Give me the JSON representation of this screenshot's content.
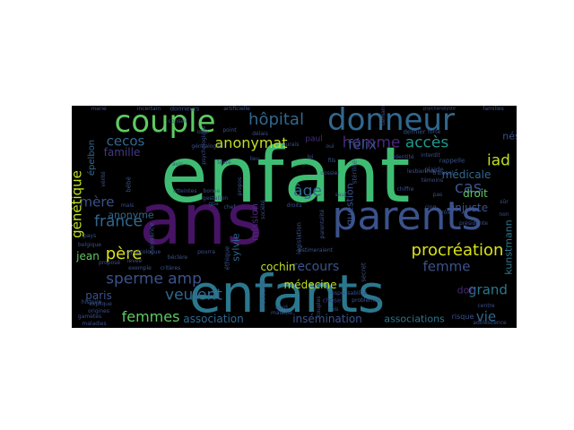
{
  "wordcloud": {
    "background": "#000000",
    "words": [
      {
        "text": "enfant",
        "color": "#3fbc73",
        "vertical": false
      },
      {
        "text": "ans",
        "color": "#471365",
        "vertical": false
      },
      {
        "text": "enfants",
        "color": "#2a788e",
        "vertical": false
      },
      {
        "text": "parents",
        "color": "#3b528b",
        "vertical": false
      },
      {
        "text": "couple",
        "color": "#5ec962",
        "vertical": false
      },
      {
        "text": "donneur",
        "color": "#31688e",
        "vertical": false
      },
      {
        "text": "procréation",
        "color": "#d8e219",
        "vertical": false
      },
      {
        "text": "sperme",
        "color": "#3b528b",
        "vertical": false
      },
      {
        "text": "amp",
        "color": "#3b528b",
        "vertical": false
      },
      {
        "text": "veulent",
        "color": "#31688e",
        "vertical": false
      },
      {
        "text": "femmes",
        "color": "#5ec962",
        "vertical": false
      },
      {
        "text": "hôpital",
        "color": "#31688e",
        "vertical": false
      },
      {
        "text": "anonymat",
        "color": "#c2df23",
        "vertical": false
      },
      {
        "text": "homme",
        "color": "#482878",
        "vertical": false
      },
      {
        "text": "accès",
        "color": "#1f988b",
        "vertical": false
      },
      {
        "text": "félix",
        "color": "#3b528b",
        "vertical": false
      },
      {
        "text": "cecos",
        "color": "#31688e",
        "vertical": false
      },
      {
        "text": "famille",
        "color": "#443983",
        "vertical": false
      },
      {
        "text": "père",
        "color": "#d8e219",
        "vertical": false
      },
      {
        "text": "france",
        "color": "#31688e",
        "vertical": false
      },
      {
        "text": "mère",
        "color": "#3b528b",
        "vertical": false
      },
      {
        "text": "génétique",
        "color": "#c2df23",
        "vertical": true
      },
      {
        "text": "femme",
        "color": "#3b528b",
        "vertical": false
      },
      {
        "text": "grand",
        "color": "#2a788e",
        "vertical": false
      },
      {
        "text": "vie",
        "color": "#31688e",
        "vertical": false
      },
      {
        "text": "cas",
        "color": "#3b528b",
        "vertical": false
      },
      {
        "text": "iad",
        "color": "#c2df23",
        "vertical": false
      },
      {
        "text": "âge",
        "color": "#31688e",
        "vertical": false
      },
      {
        "text": "médicale",
        "color": "#31688e",
        "vertical": false
      },
      {
        "text": "droit",
        "color": "#5ec962",
        "vertical": false
      },
      {
        "text": "injuste",
        "color": "#3b528b",
        "vertical": false
      },
      {
        "text": "kunstmann",
        "color": "#2a788e",
        "vertical": true
      },
      {
        "text": "nés",
        "color": "#3b528b",
        "vertical": false
      },
      {
        "text": "recours",
        "color": "#3b528b",
        "vertical": false
      },
      {
        "text": "don",
        "color": "#482878",
        "vertical": false
      },
      {
        "text": "cochin",
        "color": "#c2df23",
        "vertical": false
      },
      {
        "text": "médecine",
        "color": "#c2df23",
        "vertical": false
      },
      {
        "text": "jean",
        "color": "#5ec962",
        "vertical": false
      },
      {
        "text": "paris",
        "color": "#3b528b",
        "vertical": false
      },
      {
        "text": "anonyme",
        "color": "#31688e",
        "vertical": false
      },
      {
        "text": "association",
        "color": "#31688e",
        "vertical": false
      },
      {
        "text": "insémination",
        "color": "#3b528b",
        "vertical": false
      },
      {
        "text": "associations",
        "color": "#2a788e",
        "vertical": false
      },
      {
        "text": "mission",
        "color": "#482878",
        "vertical": true
      },
      {
        "text": "question",
        "color": "#3b528b",
        "vertical": true
      },
      {
        "text": "sylvie",
        "color": "#31688e",
        "vertical": true
      },
      {
        "text": "épelbon",
        "color": "#31688e",
        "vertical": true
      },
      {
        "text": "paul",
        "color": "#472d7b",
        "vertical": false
      },
      {
        "text": "risque",
        "color": "#3b528b",
        "vertical": false
      },
      {
        "text": "chose",
        "color": "#443983",
        "vertical": false
      },
      {
        "text": "plaide",
        "color": "#3b528b",
        "vertical": false
      },
      {
        "text": "dernier",
        "color": "#3b528b",
        "vertical": false
      },
      {
        "text": "conseil",
        "color": "#3b528b",
        "vertical": false
      },
      {
        "text": "donneurs",
        "color": "#3b528b",
        "vertical": false
      },
      {
        "text": "incertain",
        "color": "#3b528b",
        "vertical": false
      },
      {
        "text": "artificielle",
        "color": "#3b528b",
        "vertical": false
      },
      {
        "text": "marié",
        "color": "#3b528b",
        "vertical": false
      },
      {
        "text": "psychanalyste",
        "color": "#3b528b",
        "vertical": false
      },
      {
        "text": "familles",
        "color": "#3b528b",
        "vertical": false
      },
      {
        "text": "adolescence",
        "color": "#3b528b",
        "vertical": false
      },
      {
        "text": "centre",
        "color": "#3b528b",
        "vertical": false
      },
      {
        "text": "nord",
        "color": "#3b528b",
        "vertical": false
      },
      {
        "text": "fois",
        "color": "#3b528b",
        "vertical": false
      },
      {
        "text": "maladie",
        "color": "#3b528b",
        "vertical": false
      },
      {
        "text": "maladies",
        "color": "#3b528b",
        "vertical": false
      },
      {
        "text": "histoire",
        "color": "#3b528b",
        "vertical": false
      },
      {
        "text": "origines",
        "color": "#3b528b",
        "vertical": false
      },
      {
        "text": "gamètes",
        "color": "#3b528b",
        "vertical": false
      },
      {
        "text": "exemple",
        "color": "#3b528b",
        "vertical": false
      },
      {
        "text": "critères",
        "color": "#3b528b",
        "vertical": false
      },
      {
        "text": "béclère",
        "color": "#3b528b",
        "vertical": false
      },
      {
        "text": "bonne",
        "color": "#3b528b",
        "vertical": false
      },
      {
        "text": "gestation",
        "color": "#3b528b",
        "vertical": false
      },
      {
        "text": "gpa",
        "color": "#3b528b",
        "vertical": false
      },
      {
        "text": "atteintes",
        "color": "#3b528b",
        "vertical": false
      },
      {
        "text": "chef",
        "color": "#3b528b",
        "vertical": false
      },
      {
        "text": "pays",
        "color": "#3b528b",
        "vertical": false
      },
      {
        "text": "belgique",
        "color": "#3b528b",
        "vertical": false
      },
      {
        "text": "mais",
        "color": "#3b528b",
        "vertical": false
      },
      {
        "text": "fils",
        "color": "#3b528b",
        "vertical": false
      },
      {
        "text": "estimeraient",
        "color": "#3b528b",
        "vertical": false
      },
      {
        "text": "responsabilité",
        "color": "#3b528b",
        "vertical": false
      },
      {
        "text": "problèmes",
        "color": "#3b528b",
        "vertical": false
      },
      {
        "text": "lesbiennes",
        "color": "#3b528b",
        "vertical": false
      },
      {
        "text": "identité",
        "color": "#3b528b",
        "vertical": false
      },
      {
        "text": "interdit",
        "color": "#3b528b",
        "vertical": false
      },
      {
        "text": "forte",
        "color": "#3b528b",
        "vertical": false
      },
      {
        "text": "rappelle",
        "color": "#3b528b",
        "vertical": false
      },
      {
        "text": "tribunal",
        "color": "#3b528b",
        "vertical": false
      },
      {
        "text": "proposé",
        "color": "#3b528b",
        "vertical": false
      },
      {
        "text": "explique",
        "color": "#3b528b",
        "vertical": false
      },
      {
        "text": "levée",
        "color": "#3b528b",
        "vertical": false
      },
      {
        "text": "gynécologue",
        "color": "#3b528b",
        "vertical": false
      },
      {
        "text": "délais",
        "color": "#3b528b",
        "vertical": false
      },
      {
        "text": "généalogie",
        "color": "#3b528b",
        "vertical": false
      },
      {
        "text": "témoins",
        "color": "#3b528b",
        "vertical": false
      },
      {
        "text": "présidente",
        "color": "#3b528b",
        "vertical": false
      },
      {
        "text": "pourra",
        "color": "#3b528b",
        "vertical": false
      },
      {
        "text": "aurais",
        "color": "#3b528b",
        "vertical": false
      },
      {
        "text": "oui",
        "color": "#3b528b",
        "vertical": false
      },
      {
        "text": "lieu",
        "color": "#3b528b",
        "vertical": false
      },
      {
        "text": "dossier",
        "color": "#3b528b",
        "vertical": false
      },
      {
        "text": "sauf",
        "color": "#3b528b",
        "vertical": false
      },
      {
        "text": "chiffre",
        "color": "#3b528b",
        "vertical": false
      },
      {
        "text": "pas",
        "color": "#3b528b",
        "vertical": false
      },
      {
        "text": "sûr",
        "color": "#3b528b",
        "vertical": false
      },
      {
        "text": "non",
        "color": "#3b528b",
        "vertical": false
      },
      {
        "text": "rôle",
        "color": "#3b528b",
        "vertical": false
      },
      {
        "text": "cinq",
        "color": "#3b528b",
        "vertical": false
      },
      {
        "text": "idée",
        "color": "#3b528b",
        "vertical": false
      },
      {
        "text": "point",
        "color": "#3b528b",
        "vertical": false
      },
      {
        "text": "avis",
        "color": "#3b528b",
        "vertical": false
      },
      {
        "text": "texte",
        "color": "#3b528b",
        "vertical": false
      },
      {
        "text": "loi",
        "color": "#3b528b",
        "vertical": false
      },
      {
        "text": "droits",
        "color": "#3b528b",
        "vertical": false
      },
      {
        "text": "parentalité",
        "color": "#3b528b",
        "vertical": true
      },
      {
        "text": "psychologique",
        "color": "#3b528b",
        "vertical": true
      },
      {
        "text": "vérité",
        "color": "#3b528b",
        "vertical": true
      },
      {
        "text": "naissance",
        "color": "#3b528b",
        "vertical": true
      },
      {
        "text": "médecins",
        "color": "#3b528b",
        "vertical": true
      },
      {
        "text": "secret",
        "color": "#3b528b",
        "vertical": true
      },
      {
        "text": "couples",
        "color": "#3b528b",
        "vertical": true
      },
      {
        "text": "demande",
        "color": "#3b528b",
        "vertical": true
      },
      {
        "text": "éthique",
        "color": "#3b528b",
        "vertical": true
      },
      {
        "text": "stérilité",
        "color": "#3b528b",
        "vertical": true
      },
      {
        "text": "bébé",
        "color": "#3b528b",
        "vertical": true
      },
      {
        "text": "législation",
        "color": "#3b528b",
        "vertical": true
      },
      {
        "text": "propos",
        "color": "#3b528b",
        "vertical": true
      },
      {
        "text": "société",
        "color": "#3b528b",
        "vertical": true
      }
    ]
  }
}
